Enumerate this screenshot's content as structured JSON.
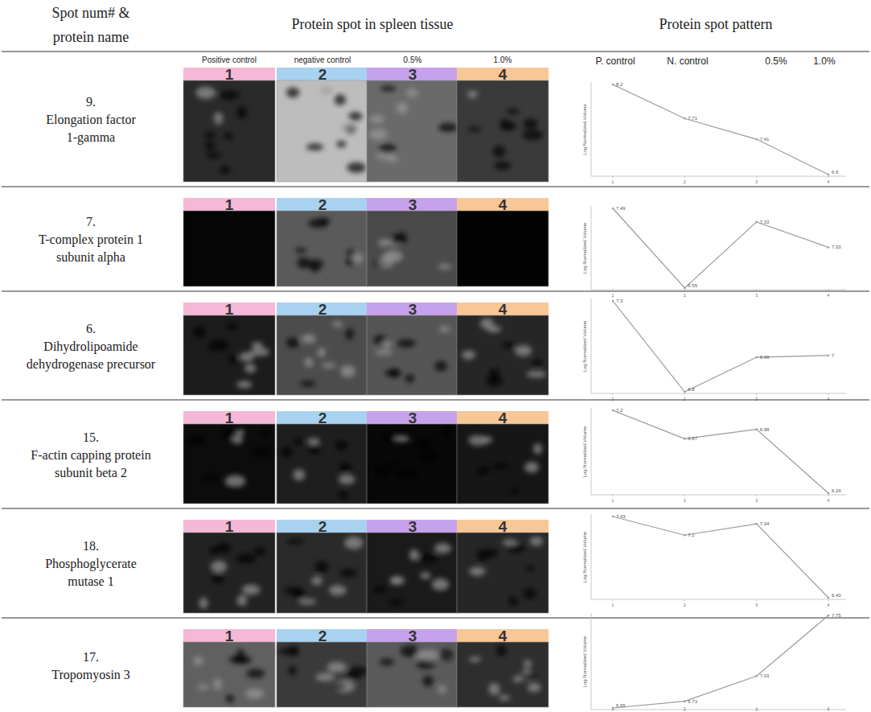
{
  "header": {
    "spot": [
      "Spot num# &",
      "protein name"
    ],
    "images": "Protein spot in spleen tissue",
    "pattern": "Protein spot pattern"
  },
  "image_labels": [
    "Positive control",
    "negative control",
    "0.5%",
    "1.0%"
  ],
  "lanes": [
    "1",
    "2",
    "3",
    "4"
  ],
  "pattern_labels": [
    "P. control",
    "N. control",
    "0.5%",
    "1.0%"
  ],
  "rows": [
    {
      "number": "9.",
      "name": [
        "Elongation factor",
        "1-gamma"
      ]
    },
    {
      "number": "7.",
      "name": [
        "T-complex protein 1",
        "subunit alpha"
      ]
    },
    {
      "number": "6.",
      "name": [
        "Dihydrolipoamide",
        "dehydrogenase precursor"
      ]
    },
    {
      "number": "15.",
      "name": [
        "F-actin capping protein",
        "subunit beta 2"
      ]
    },
    {
      "number": "18.",
      "name": [
        "Phosphoglycerate",
        "mutase 1"
      ]
    },
    {
      "number": "17.",
      "name": [
        "Tropomyosin 3"
      ]
    }
  ],
  "chart_data": [
    {
      "type": "line",
      "y_label": "Log Normalized Volume",
      "x": [
        1,
        2,
        3,
        4
      ],
      "xlim": [
        1,
        4
      ],
      "xticks": [
        1,
        2,
        3,
        4
      ],
      "values": [
        8.2,
        7.71,
        7.41,
        6.9
      ],
      "ylim": [
        6.9,
        8.2
      ],
      "data_labels": true,
      "tick_labels": "x",
      "color": "#9a9a9a"
    },
    {
      "type": "line",
      "y_label": "Log Normalized Volume",
      "x": [
        1,
        2,
        3,
        4
      ],
      "xlim": [
        1,
        4
      ],
      "xticks": [
        1,
        2,
        3,
        4
      ],
      "values": [
        7.49,
        6.55,
        7.33,
        7.03
      ],
      "ylim": [
        6.55,
        7.49
      ],
      "data_labels": true,
      "tick_labels": "x",
      "color": "#9a9a9a"
    },
    {
      "type": "line",
      "y_label": "Log Normalized Volume",
      "x": [
        1,
        2,
        3,
        4
      ],
      "xlim": [
        1,
        4
      ],
      "xticks": [
        1,
        2,
        3,
        4
      ],
      "values": [
        7.3,
        6.8,
        6.99,
        7
      ],
      "ylim": [
        6.8,
        7.3
      ],
      "data_labels": true,
      "tick_labels": "x",
      "color": "#9a9a9a"
    },
    {
      "type": "line",
      "y_label": "Log Normalized Volume",
      "x": [
        1,
        2,
        3,
        4
      ],
      "xlim": [
        1,
        4
      ],
      "xticks": [
        1,
        2,
        3,
        4
      ],
      "values": [
        7.2,
        6.87,
        6.98,
        6.24
      ],
      "ylim": [
        6.24,
        7.2
      ],
      "data_labels": true,
      "tick_labels": "x",
      "color": "#9a9a9a"
    },
    {
      "type": "line",
      "y_label": "Log Normalized Volume",
      "x": [
        1,
        2,
        3,
        4
      ],
      "xlim": [
        1,
        4
      ],
      "xticks": [
        1,
        2,
        3,
        4
      ],
      "values": [
        7.43,
        7.2,
        7.34,
        6.43
      ],
      "ylim": [
        6.43,
        7.43
      ],
      "data_labels": true,
      "tick_labels": "x",
      "color": "#9a9a9a"
    },
    {
      "type": "line",
      "y_label": "Log Normalized Volume",
      "x": [
        1,
        2,
        3,
        4
      ],
      "xlim": [
        1,
        4
      ],
      "xticks": [
        1,
        2,
        3,
        4
      ],
      "values": [
        6.65,
        6.73,
        7.03,
        7.75
      ],
      "ylim": [
        6.65,
        7.75
      ],
      "data_labels": true,
      "tick_labels": "x",
      "color": "#9a9a9a"
    }
  ]
}
